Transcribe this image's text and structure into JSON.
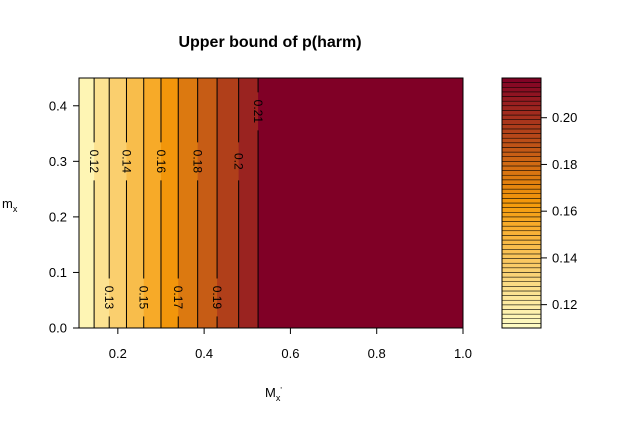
{
  "chart_data": {
    "type": "filled-contour",
    "title": "Upper bound of p(harm)",
    "xlabel": {
      "base": "M",
      "sub": "x",
      "sup": "'"
    },
    "ylabel": {
      "base": "m",
      "sub": "x"
    },
    "xlim": [
      0.11,
      1.0
    ],
    "ylim": [
      0.0,
      0.45
    ],
    "x_ticks": [
      0.2,
      0.4,
      0.6,
      0.8,
      1.0
    ],
    "x_tick_labels": [
      "0.2",
      "0.4",
      "0.6",
      "0.8",
      "1.0"
    ],
    "y_ticks": [
      0.0,
      0.1,
      0.2,
      0.3,
      0.4
    ],
    "y_tick_labels": [
      "0.0",
      "0.1",
      "0.2",
      "0.3",
      "0.4"
    ],
    "value_range": [
      0.11,
      0.217
    ],
    "contours": [
      {
        "level": 0.12,
        "x": 0.145,
        "label": "0.12",
        "label_pos": "upper"
      },
      {
        "level": 0.13,
        "x": 0.18,
        "label": "0.13",
        "label_pos": "lower"
      },
      {
        "level": 0.14,
        "x": 0.22,
        "label": "0.14",
        "label_pos": "upper"
      },
      {
        "level": 0.15,
        "x": 0.26,
        "label": "0.15",
        "label_pos": "lower"
      },
      {
        "level": 0.16,
        "x": 0.3,
        "label": "0.16",
        "label_pos": "upper"
      },
      {
        "level": 0.17,
        "x": 0.34,
        "label": "0.17",
        "label_pos": "lower"
      },
      {
        "level": 0.18,
        "x": 0.385,
        "label": "0.18",
        "label_pos": "upper"
      },
      {
        "level": 0.19,
        "x": 0.43,
        "label": "0.19",
        "label_pos": "lower"
      },
      {
        "level": 0.2,
        "x": 0.48,
        "label": "0.2",
        "label_pos": "upper"
      },
      {
        "level": 0.21,
        "x": 0.525,
        "label": "0.21",
        "label_pos": "top"
      }
    ],
    "plateau_from_x": 0.525,
    "colorbar": {
      "ticks": [
        0.12,
        0.14,
        0.16,
        0.18,
        0.2
      ],
      "tick_labels": [
        "0.12",
        "0.14",
        "0.16",
        "0.18",
        "0.20"
      ],
      "n_bands": 54
    },
    "colors": {
      "low": "#fffec6",
      "mid": "#f59a0a",
      "high": "#800026"
    }
  }
}
